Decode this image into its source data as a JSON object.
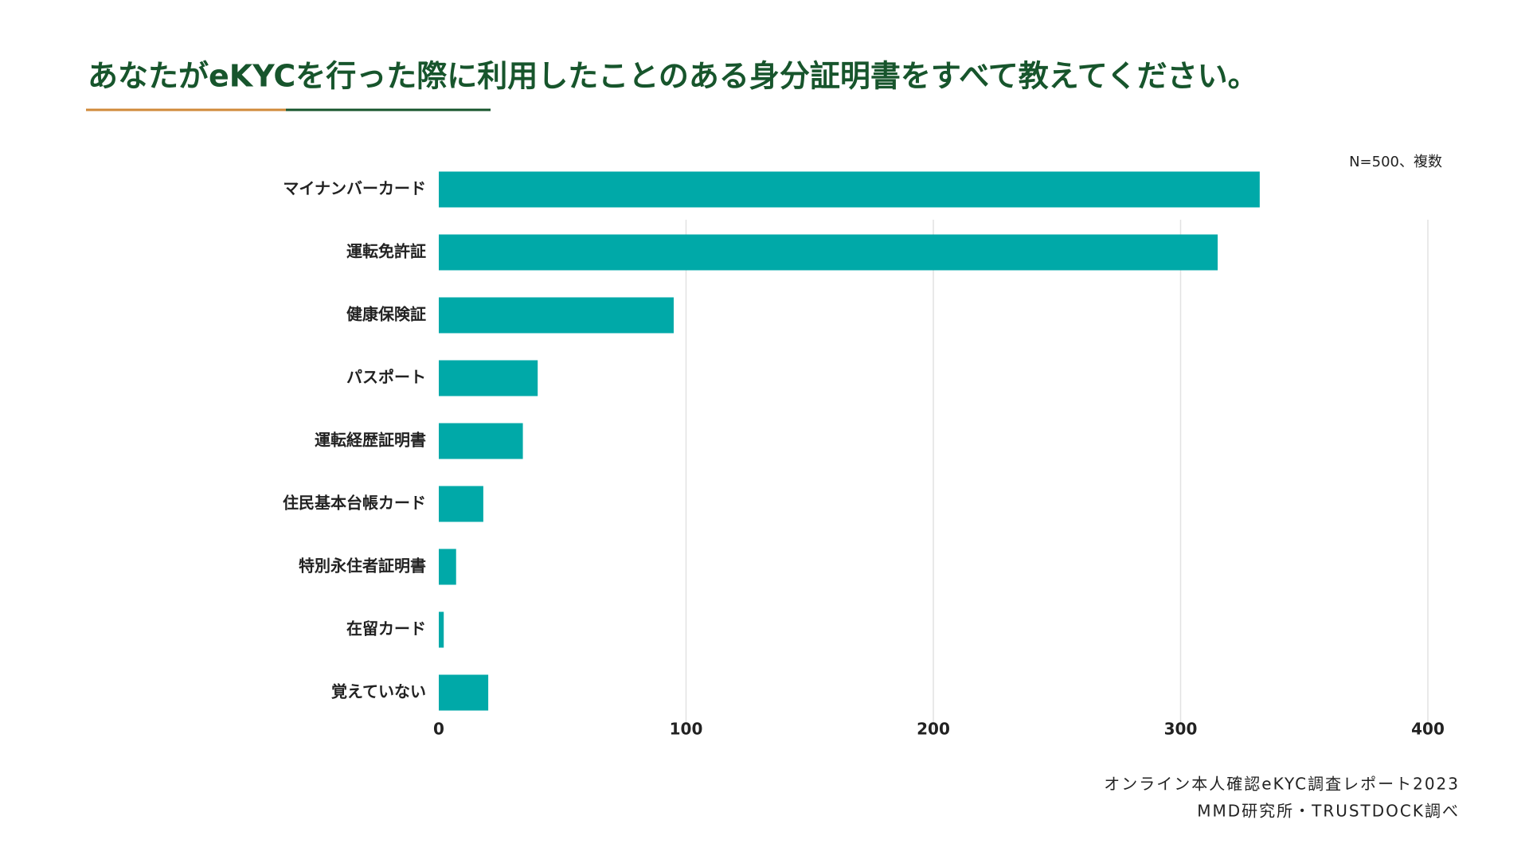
{
  "chart_data": {
    "type": "hbar",
    "title": "あなたがeKYCを行った際に利用したことのある身分証明書をすべて教えてください。",
    "note": "N=500、複数",
    "source": [
      "オンライン本人確認eKYC調査レポート2023",
      "MMD研究所・TRUSTDOCK調べ"
    ],
    "categories": [
      "マイナンバーカード",
      "運転免許証",
      "健康保険証",
      "パスポート",
      "運転経歴証明書",
      "住民基本台帳カード",
      "特別永住者証明書",
      "在留カード",
      "覚えていない"
    ],
    "values": [
      332,
      315,
      95,
      40,
      34,
      18,
      7,
      2,
      20
    ],
    "color": "#00a9a8",
    "xlim": [
      0,
      400
    ],
    "xticks": [
      0,
      100,
      200,
      300,
      400
    ],
    "grid": true
  }
}
